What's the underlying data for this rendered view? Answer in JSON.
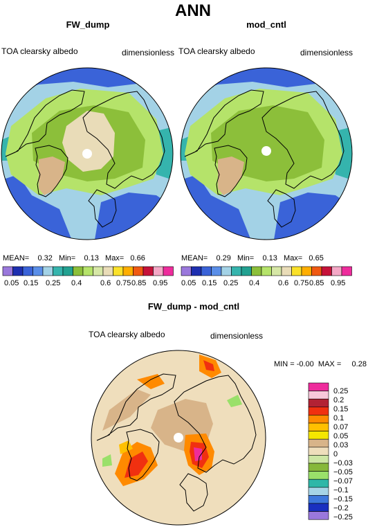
{
  "header": {
    "title": "ANN"
  },
  "panels": [
    {
      "id": "fw_dump",
      "title": "FW_dump",
      "left_label": "TOA clearsky albedo",
      "right_label": "dimensionless",
      "stats": {
        "mean_label": "MEAN=",
        "mean": "0.32",
        "min_label": "Min=",
        "min": "0.13",
        "max_label": "Max=",
        "max": "0.66"
      }
    },
    {
      "id": "mod_cntl",
      "title": "mod_cntl",
      "left_label": "TOA clearsky albedo",
      "right_label": "dimensionless",
      "stats": {
        "mean_label": "MEAN=",
        "mean": "0.29",
        "min_label": "Min=",
        "min": "0.13",
        "max_label": "Max=",
        "max": "0.65"
      }
    },
    {
      "id": "diff",
      "title": "FW_dump - mod_cntl",
      "left_label": "TOA clearsky albedo",
      "right_label": "dimensionless",
      "stats": {
        "min_label": "MIN =",
        "min": "-0.00",
        "max_label": "MAX =",
        "max": "0.28"
      }
    }
  ],
  "colorbars": {
    "horizontal": {
      "colors": [
        "#9a78dc",
        "#1e2fb0",
        "#3a63d8",
        "#5a8ee8",
        "#a3d2e6",
        "#35b4ad",
        "#22a191",
        "#8cbf3a",
        "#b5e36a",
        "#d6e7a6",
        "#e9dcb8",
        "#fbe12a",
        "#ffae00",
        "#f05a12",
        "#c6123a",
        "#f4a8c6",
        "#ee2c9c"
      ],
      "tick_labels": [
        "0.05",
        "0.15",
        "0.25",
        "0.4",
        "0.6",
        "0.75",
        "0.85",
        "0.95"
      ],
      "tick_after_box": [
        1,
        3,
        5,
        8,
        11,
        13,
        15,
        16
      ]
    },
    "vertical": {
      "colors": [
        "#ee2c9c",
        "#f8c8da",
        "#b22234",
        "#f03010",
        "#ff8a00",
        "#ffc000",
        "#f5e600",
        "#d8b489",
        "#efdebc",
        "#cde6a4",
        "#86b83a",
        "#9ae06a",
        "#2eb7a8",
        "#a6d4e6",
        "#3e78dc",
        "#1a30c0",
        "#9a78dc"
      ],
      "tick_labels": [
        "0.25",
        "0.2",
        "0.15",
        "0.1",
        "0.07",
        "0.05",
        "0.03",
        "0",
        "−0.03",
        "−0.05",
        "−0.07",
        "−0.1",
        "−0.15",
        "−0.2",
        "−0.25"
      ]
    }
  },
  "map_colors": {
    "blue": "#3a63d8",
    "ltblue": "#a3d2e6",
    "teal": "#35b4ad",
    "green": "#8cbf3a",
    "ltgreen": "#b5e36a",
    "cream": "#e9dcb8",
    "tan": "#d8b489",
    "pole": "#ffffff",
    "diff_bg": "#efdebc",
    "diff_tan": "#d8b489",
    "diff_orange": "#ff8a00",
    "diff_yellow": "#ffc000",
    "diff_red": "#f03010",
    "diff_pink": "#ee2c9c"
  }
}
